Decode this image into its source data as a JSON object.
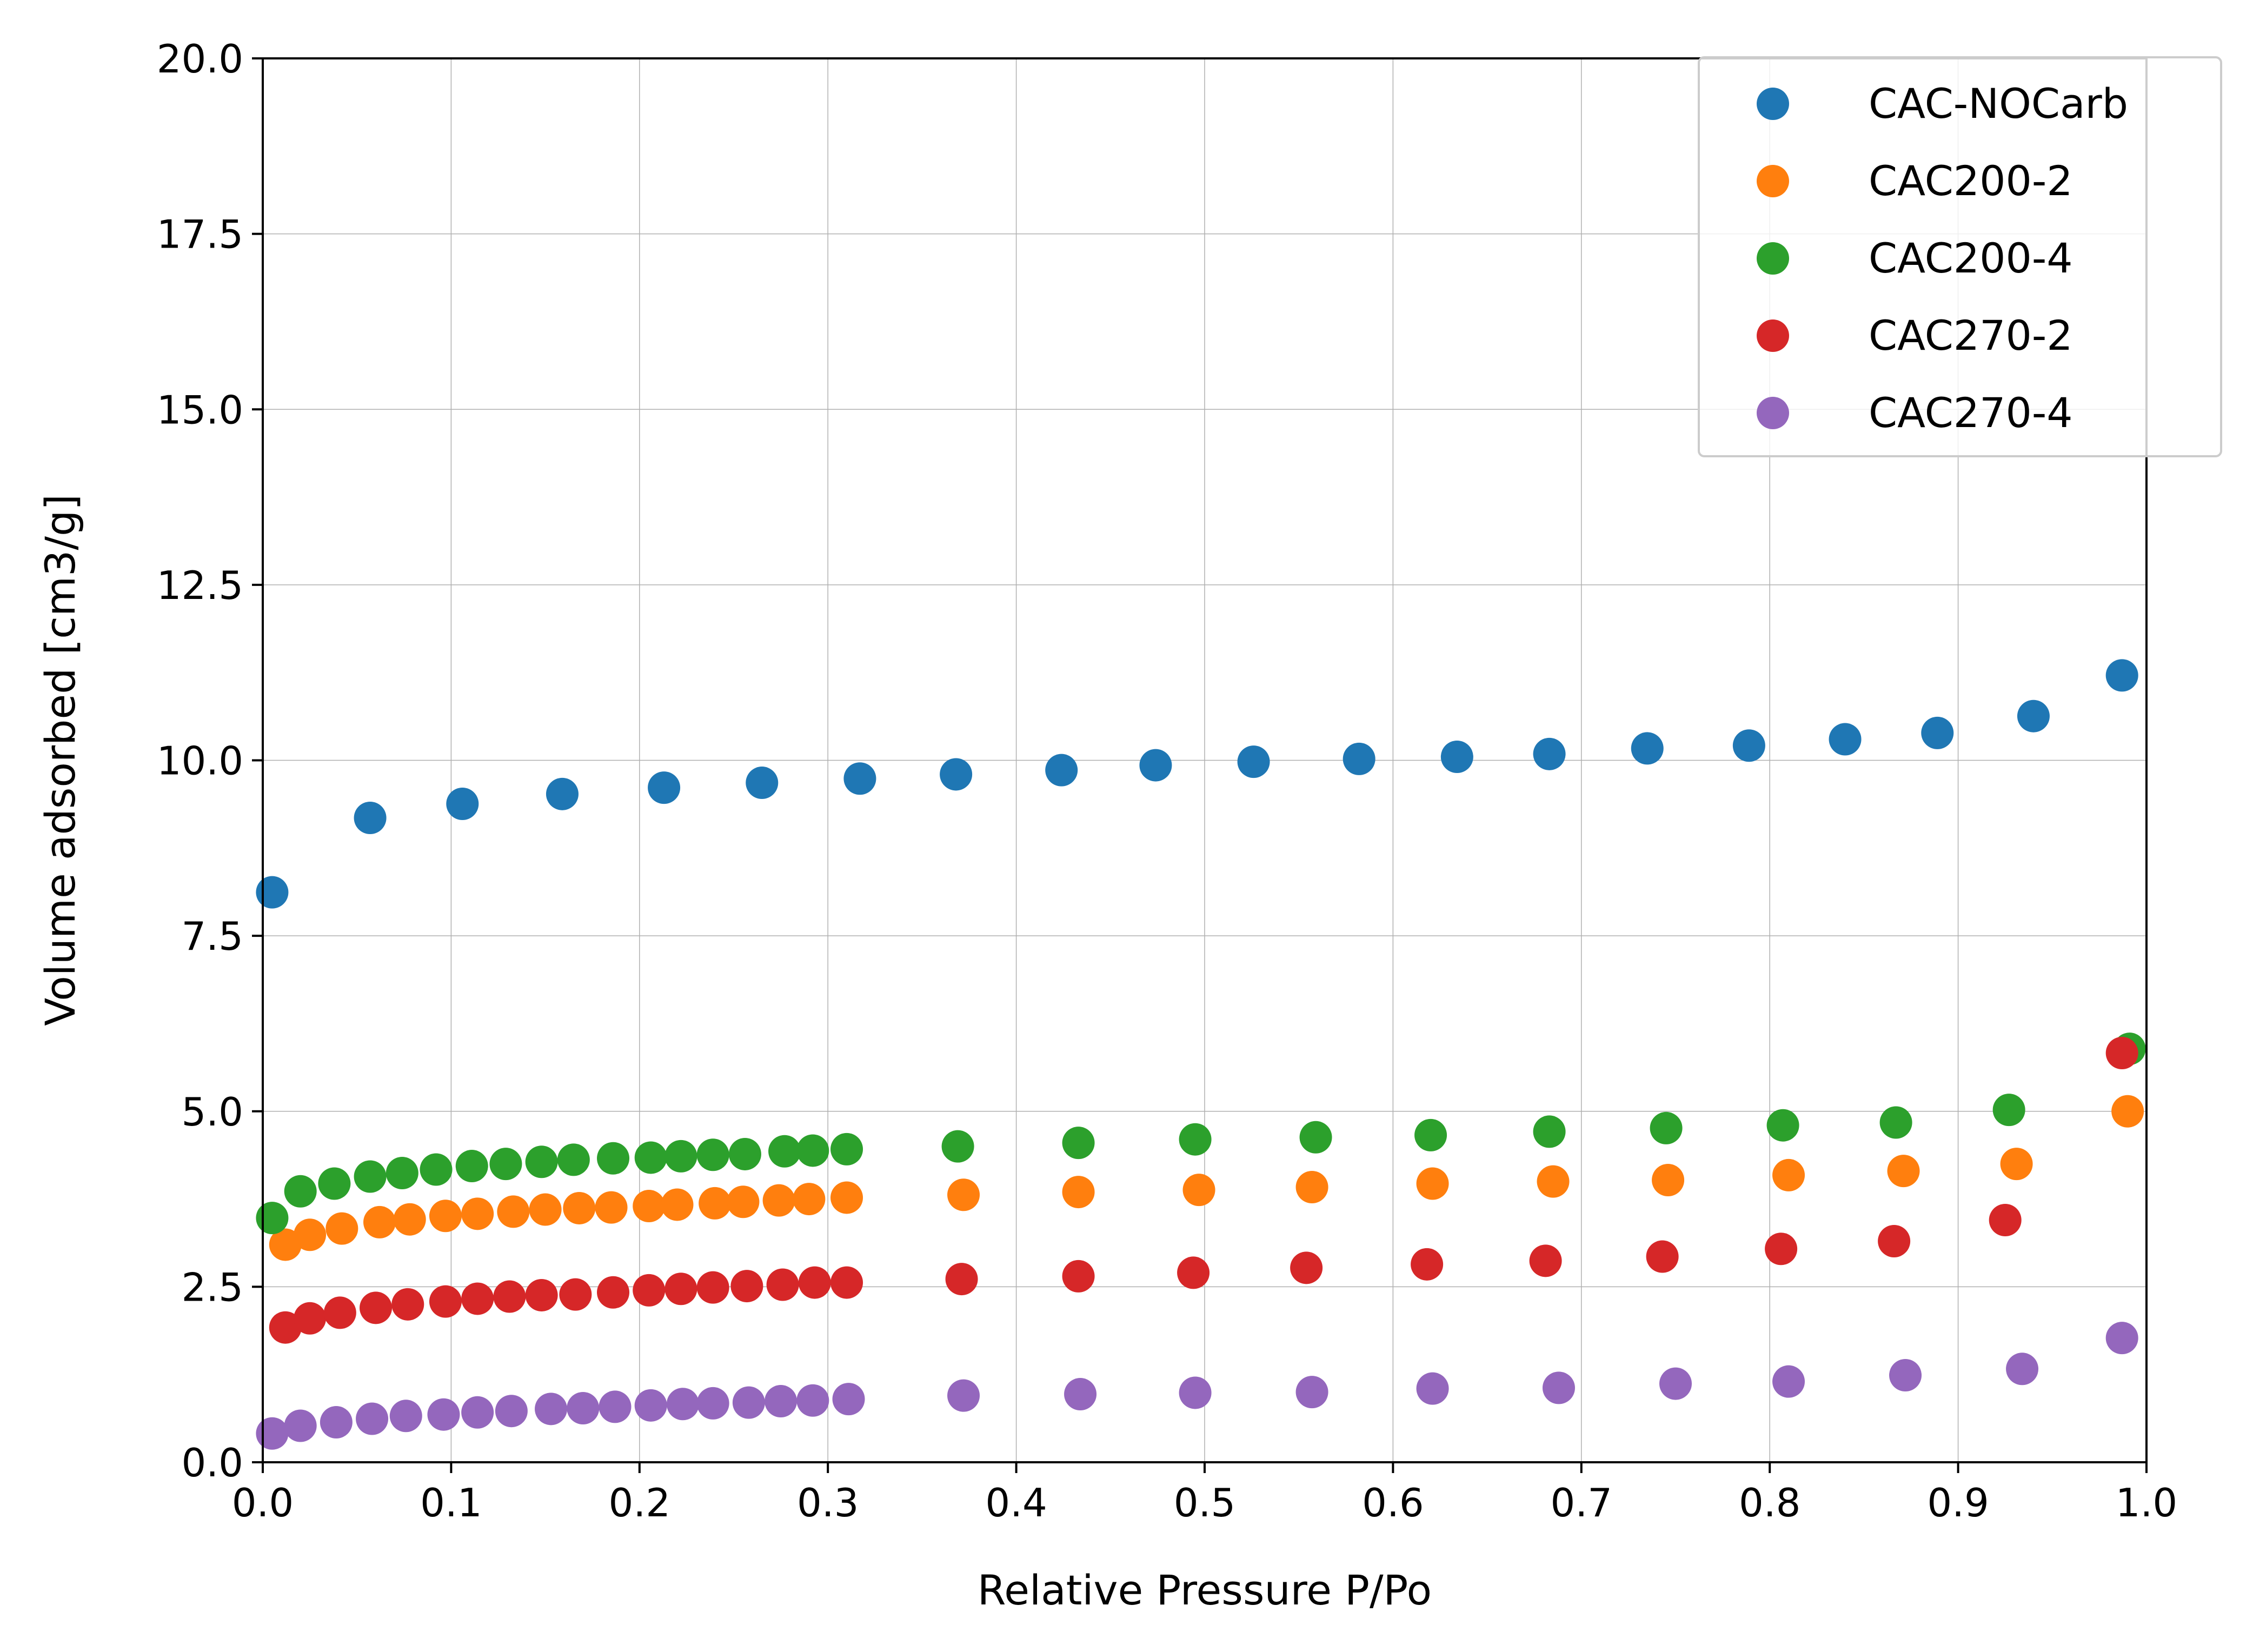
{
  "chart_data": {
    "type": "scatter",
    "title": "",
    "xlabel": "Relative Pressure P/Po",
    "ylabel": "Volume adsorbed [cm3/g]",
    "xlim": [
      0.0,
      1.0
    ],
    "ylim": [
      0.0,
      20.0
    ],
    "x_ticks": [
      "0.0",
      "0.1",
      "0.2",
      "0.3",
      "0.4",
      "0.5",
      "0.6",
      "0.7",
      "0.8",
      "0.9",
      "1.0"
    ],
    "y_ticks": [
      "0.0",
      "2.5",
      "5.0",
      "7.5",
      "10.0",
      "12.5",
      "15.0",
      "17.5",
      "20.0"
    ],
    "grid": true,
    "legend_position": "top-right",
    "series": [
      {
        "name": "CAC-NOCarb",
        "color": "#1f77b4",
        "points": [
          [
            0.005,
            8.12
          ],
          [
            0.057,
            9.18
          ],
          [
            0.106,
            9.38
          ],
          [
            0.159,
            9.52
          ],
          [
            0.213,
            9.61
          ],
          [
            0.265,
            9.68
          ],
          [
            0.317,
            9.74
          ],
          [
            0.368,
            9.8
          ],
          [
            0.424,
            9.86
          ],
          [
            0.474,
            9.93
          ],
          [
            0.526,
            9.98
          ],
          [
            0.582,
            10.02
          ],
          [
            0.634,
            10.05
          ],
          [
            0.683,
            10.09
          ],
          [
            0.735,
            10.17
          ],
          [
            0.789,
            10.21
          ],
          [
            0.84,
            10.3
          ],
          [
            0.889,
            10.39
          ],
          [
            0.94,
            10.63
          ],
          [
            0.987,
            11.21
          ]
        ]
      },
      {
        "name": "CAC200-2",
        "color": "#ff7f0e",
        "points": [
          [
            0.012,
            3.1
          ],
          [
            0.025,
            3.24
          ],
          [
            0.042,
            3.33
          ],
          [
            0.062,
            3.42
          ],
          [
            0.078,
            3.46
          ],
          [
            0.097,
            3.51
          ],
          [
            0.114,
            3.54
          ],
          [
            0.133,
            3.57
          ],
          [
            0.15,
            3.6
          ],
          [
            0.168,
            3.62
          ],
          [
            0.185,
            3.63
          ],
          [
            0.205,
            3.65
          ],
          [
            0.22,
            3.67
          ],
          [
            0.24,
            3.69
          ],
          [
            0.255,
            3.71
          ],
          [
            0.274,
            3.73
          ],
          [
            0.29,
            3.75
          ],
          [
            0.31,
            3.77
          ],
          [
            0.372,
            3.81
          ],
          [
            0.433,
            3.85
          ],
          [
            0.497,
            3.88
          ],
          [
            0.557,
            3.92
          ],
          [
            0.621,
            3.97
          ],
          [
            0.685,
            4.0
          ],
          [
            0.746,
            4.02
          ],
          [
            0.81,
            4.09
          ],
          [
            0.871,
            4.15
          ],
          [
            0.931,
            4.25
          ],
          [
            0.99,
            5.0
          ]
        ]
      },
      {
        "name": "CAC200-4",
        "color": "#2ca02c",
        "points": [
          [
            0.005,
            3.48
          ],
          [
            0.02,
            3.86
          ],
          [
            0.038,
            3.97
          ],
          [
            0.057,
            4.07
          ],
          [
            0.074,
            4.12
          ],
          [
            0.092,
            4.17
          ],
          [
            0.111,
            4.22
          ],
          [
            0.129,
            4.25
          ],
          [
            0.148,
            4.28
          ],
          [
            0.165,
            4.31
          ],
          [
            0.186,
            4.33
          ],
          [
            0.206,
            4.34
          ],
          [
            0.222,
            4.36
          ],
          [
            0.239,
            4.38
          ],
          [
            0.256,
            4.39
          ],
          [
            0.277,
            4.43
          ],
          [
            0.292,
            4.44
          ],
          [
            0.31,
            4.46
          ],
          [
            0.369,
            4.5
          ],
          [
            0.433,
            4.55
          ],
          [
            0.495,
            4.6
          ],
          [
            0.559,
            4.63
          ],
          [
            0.62,
            4.66
          ],
          [
            0.683,
            4.71
          ],
          [
            0.745,
            4.76
          ],
          [
            0.807,
            4.8
          ],
          [
            0.867,
            4.84
          ],
          [
            0.927,
            5.02
          ],
          [
            0.991,
            5.89
          ]
        ]
      },
      {
        "name": "CAC270-2",
        "color": "#d62728",
        "points": [
          [
            0.012,
            1.92
          ],
          [
            0.025,
            2.05
          ],
          [
            0.041,
            2.13
          ],
          [
            0.06,
            2.2
          ],
          [
            0.077,
            2.25
          ],
          [
            0.097,
            2.29
          ],
          [
            0.114,
            2.33
          ],
          [
            0.131,
            2.36
          ],
          [
            0.148,
            2.38
          ],
          [
            0.166,
            2.39
          ],
          [
            0.186,
            2.42
          ],
          [
            0.205,
            2.45
          ],
          [
            0.222,
            2.47
          ],
          [
            0.239,
            2.49
          ],
          [
            0.257,
            2.51
          ],
          [
            0.276,
            2.53
          ],
          [
            0.293,
            2.56
          ],
          [
            0.31,
            2.56
          ],
          [
            0.371,
            2.61
          ],
          [
            0.433,
            2.65
          ],
          [
            0.494,
            2.7
          ],
          [
            0.554,
            2.77
          ],
          [
            0.618,
            2.82
          ],
          [
            0.681,
            2.87
          ],
          [
            0.743,
            2.93
          ],
          [
            0.806,
            3.04
          ],
          [
            0.866,
            3.15
          ],
          [
            0.925,
            3.45
          ],
          [
            0.987,
            5.83
          ]
        ]
      },
      {
        "name": "CAC270-4",
        "color": "#9467bd",
        "points": [
          [
            0.005,
            0.41
          ],
          [
            0.02,
            0.52
          ],
          [
            0.039,
            0.57
          ],
          [
            0.058,
            0.62
          ],
          [
            0.076,
            0.66
          ],
          [
            0.096,
            0.68
          ],
          [
            0.114,
            0.71
          ],
          [
            0.132,
            0.73
          ],
          [
            0.153,
            0.76
          ],
          [
            0.17,
            0.77
          ],
          [
            0.187,
            0.79
          ],
          [
            0.206,
            0.81
          ],
          [
            0.223,
            0.83
          ],
          [
            0.239,
            0.84
          ],
          [
            0.258,
            0.85
          ],
          [
            0.275,
            0.87
          ],
          [
            0.292,
            0.88
          ],
          [
            0.311,
            0.9
          ],
          [
            0.372,
            0.95
          ],
          [
            0.434,
            0.97
          ],
          [
            0.495,
            0.99
          ],
          [
            0.557,
            1.0
          ],
          [
            0.621,
            1.05
          ],
          [
            0.688,
            1.06
          ],
          [
            0.75,
            1.12
          ],
          [
            0.81,
            1.15
          ],
          [
            0.872,
            1.24
          ],
          [
            0.934,
            1.33
          ],
          [
            0.987,
            1.77
          ]
        ]
      }
    ]
  }
}
